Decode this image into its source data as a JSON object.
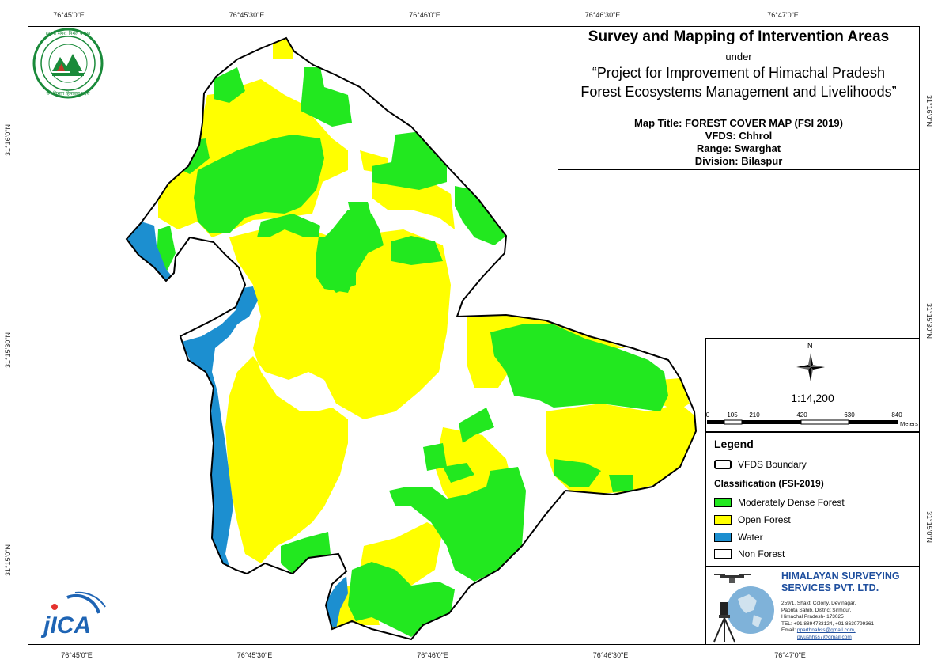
{
  "title": {
    "main": "Survey and Mapping of Intervention Areas",
    "under": "under",
    "project_line1": "“Project for Improvement of Himachal Pradesh",
    "project_line2": "Forest Ecosystems Management and Livelihoods”",
    "map_title": "Map Title: FOREST COVER MAP (FSI 2019)",
    "vfds": "VFDS: Chhrol",
    "range": "Range: Swarghat",
    "division": "Division: Bilaspur"
  },
  "coordinates": {
    "top": [
      "76°45'0\"E",
      "76°45'30\"E",
      "76°46'0\"E",
      "76°46'30\"E",
      "76°47'0\"E"
    ],
    "bottom": [
      "76°45'0\"E",
      "76°45'30\"E",
      "76°46'0\"E",
      "76°46'30\"E",
      "76°47'0\"E"
    ],
    "left": [
      "31°16'0\"N",
      "31°15'30\"N",
      "31°15'0\"N"
    ],
    "right": [
      "31°16'0\"N",
      "31°15'30\"N",
      "31°15'0\"N"
    ]
  },
  "scale": {
    "north": "N",
    "ratio": "1:14,200",
    "ticks": [
      "0",
      "105",
      "210",
      "420",
      "630",
      "840"
    ],
    "unit": "Meters"
  },
  "legend": {
    "title": "Legend",
    "boundary_label": "VFDS Boundary",
    "classification_title": "Classification (FSI-2019)",
    "items": [
      {
        "label": "Moderately Dense Forest",
        "color": "#22e81f"
      },
      {
        "label": "Open Forest",
        "color": "#ffff00"
      },
      {
        "label": "Water",
        "color": "#1c8fd0"
      },
      {
        "label": "Non Forest",
        "color": "#ffffff"
      }
    ]
  },
  "company": {
    "name_line1": "HIMALAYAN SURVEYING",
    "name_line2": "SERVICES PVT. LTD.",
    "address1": "259/1, Shakti Colony, Devinagar,",
    "address2": "Paonta Sahib, District Sirmour,",
    "address3": "Himachal Pradesh- 173025",
    "tel": "TEL: +91 8894733124, +91 8630799361",
    "email_label": "Email:",
    "email1": "pparthnahss@gmail.com,",
    "email2": "piyushhss7@gmail.com"
  },
  "logos": {
    "forest_dept_text": "हर भी सगर, निर्मल बनाया · वन विभाग हिमाचल प्रदेश",
    "jica": "JICA"
  },
  "colors": {
    "dense_forest": "#22e81f",
    "open_forest": "#ffff00",
    "water": "#1c8fd0",
    "non_forest": "#ffffff",
    "company_blue": "#1f4f9e"
  }
}
